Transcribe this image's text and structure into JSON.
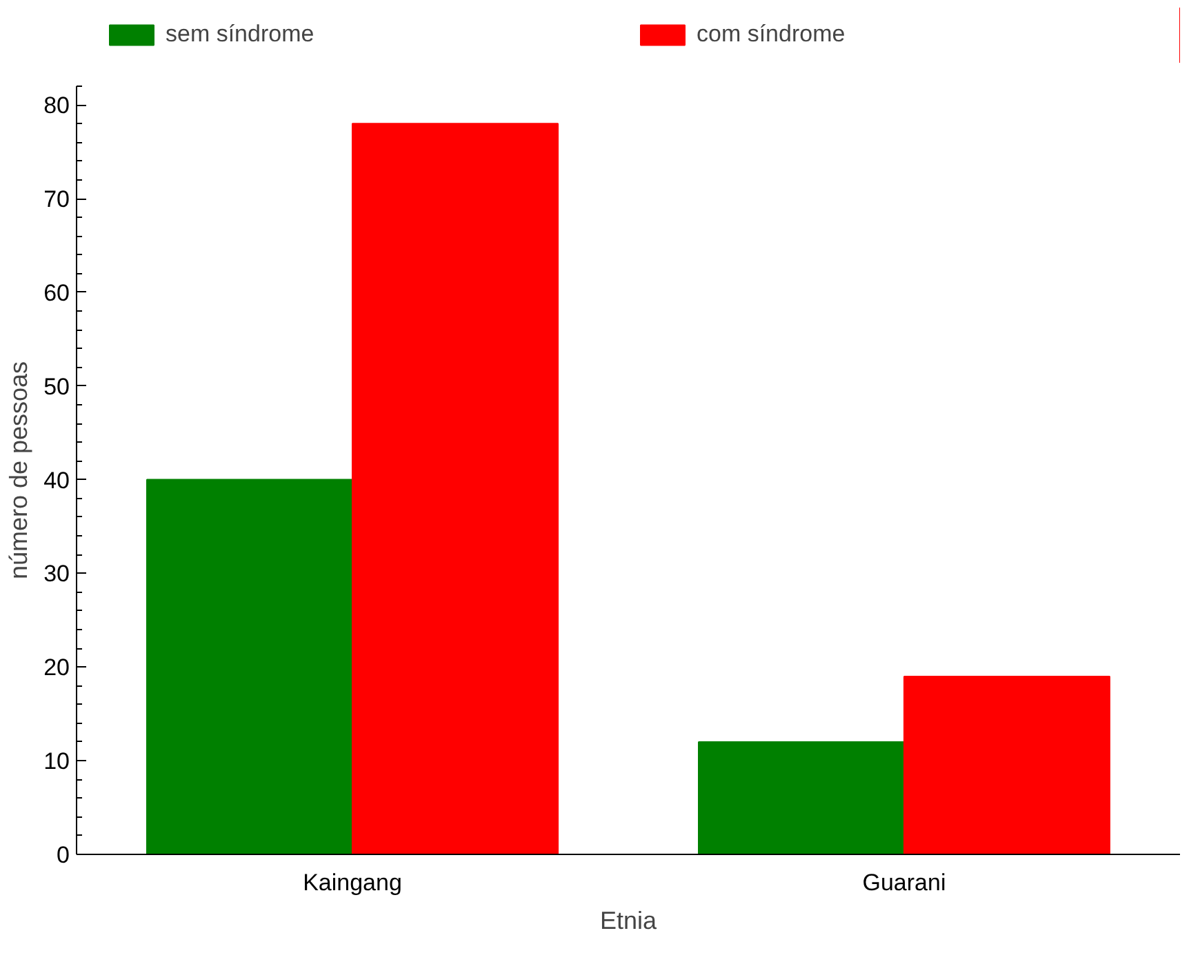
{
  "chart_data": {
    "type": "bar",
    "xlabel": "Etnia",
    "ylabel": "número de pessoas",
    "categories": [
      "Kaingang",
      "Guarani"
    ],
    "series": [
      {
        "name": "sem síndrome",
        "color": "#008000",
        "values": [
          40,
          12
        ]
      },
      {
        "name": "com síndrome",
        "color": "#ff0000",
        "values": [
          78,
          19
        ]
      }
    ],
    "ylim": [
      0,
      82
    ],
    "yticks": [
      0,
      10,
      20,
      30,
      40,
      50,
      60,
      70,
      80
    ],
    "grid": false,
    "legend": "top"
  }
}
